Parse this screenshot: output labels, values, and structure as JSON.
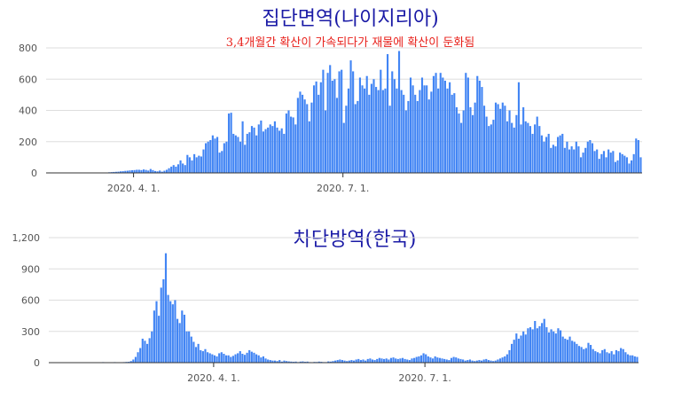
{
  "colors": {
    "bar": "#4285f4",
    "title": "#1a1aa6",
    "subtitle": "#e8201a"
  },
  "chart_data": [
    {
      "type": "bar",
      "title": "집단면역(나이지리아)",
      "subtitle": "3,4개월간 확산이 가속되다가 재물에 확산이 둔화됨",
      "ylim": [
        0,
        800
      ],
      "yticks": [
        "0",
        "200",
        "400",
        "600",
        "800"
      ],
      "ytick_values": [
        0,
        200,
        400,
        600,
        800
      ],
      "xticks": [
        {
          "label": "2020. 4. 1.",
          "index": 38
        },
        {
          "label": "2020. 7. 1.",
          "index": 129
        }
      ],
      "series": [
        {
          "values": [
            0,
            3,
            0,
            0,
            0,
            0,
            0,
            0,
            0,
            0,
            0,
            0,
            0,
            0,
            0,
            0,
            0,
            0,
            0,
            0,
            0,
            0,
            0,
            0,
            0,
            0,
            2,
            4,
            5,
            6,
            7,
            8,
            10,
            11,
            13,
            14,
            16,
            17,
            18,
            20,
            20,
            18,
            22,
            19,
            15,
            25,
            18,
            12,
            10,
            15,
            8,
            14,
            20,
            30,
            40,
            50,
            40,
            55,
            80,
            60,
            50,
            115,
            100,
            80,
            120,
            100,
            110,
            105,
            150,
            190,
            200,
            210,
            240,
            220,
            230,
            130,
            140,
            190,
            200,
            380,
            385,
            250,
            240,
            230,
            200,
            330,
            180,
            250,
            260,
            300,
            290,
            240,
            310,
            335,
            265,
            280,
            290,
            310,
            300,
            330,
            290,
            270,
            285,
            250,
            380,
            400,
            360,
            355,
            310,
            480,
            520,
            500,
            470,
            440,
            330,
            450,
            560,
            585,
            500,
            580,
            660,
            400,
            640,
            690,
            590,
            600,
            480,
            650,
            660,
            320,
            430,
            540,
            720,
            650,
            440,
            460,
            610,
            560,
            540,
            620,
            500,
            570,
            600,
            550,
            530,
            660,
            530,
            540,
            760,
            430,
            650,
            600,
            540,
            780,
            530,
            500,
            400,
            460,
            610,
            560,
            500,
            460,
            530,
            610,
            560,
            560,
            470,
            520,
            620,
            640,
            540,
            640,
            610,
            590,
            540,
            580,
            500,
            510,
            420,
            380,
            320,
            400,
            640,
            610,
            420,
            370,
            450,
            620,
            590,
            550,
            430,
            360,
            300,
            310,
            340,
            450,
            440,
            410,
            450,
            430,
            330,
            400,
            320,
            290,
            370,
            580,
            310,
            420,
            330,
            320,
            300,
            250,
            310,
            360,
            300,
            240,
            200,
            230,
            250,
            160,
            180,
            170,
            230,
            240,
            250,
            160,
            200,
            150,
            170,
            150,
            200,
            170,
            100,
            130,
            160,
            200,
            210,
            190,
            140,
            150,
            90,
            120,
            140,
            100,
            150,
            130,
            140,
            70,
            80,
            130,
            120,
            110,
            100,
            60,
            80,
            120,
            220,
            210,
            100
          ]
        }
      ]
    },
    {
      "type": "bar",
      "title": "차단방역(한국)",
      "ylim": [
        0,
        1200
      ],
      "yticks": [
        "0",
        "300",
        "600",
        "900",
        "1,200"
      ],
      "ytick_values": [
        0,
        300,
        600,
        900,
        1200
      ],
      "xticks": [
        {
          "label": "2020. 4. 1.",
          "index": 71
        },
        {
          "label": "2020. 7. 1.",
          "index": 162
        }
      ],
      "series": [
        {
          "values": [
            0,
            0,
            0,
            0,
            1,
            1,
            0,
            1,
            0,
            1,
            3,
            2,
            3,
            2,
            2,
            2,
            3,
            4,
            3,
            4,
            2,
            3,
            3,
            5,
            3,
            4,
            2,
            2,
            5,
            4,
            1,
            3,
            5,
            7,
            8,
            15,
            30,
            55,
            100,
            140,
            230,
            210,
            180,
            235,
            300,
            500,
            590,
            450,
            720,
            800,
            1050,
            650,
            590,
            560,
            600,
            420,
            380,
            500,
            460,
            300,
            300,
            250,
            200,
            150,
            180,
            120,
            110,
            130,
            100,
            90,
            80,
            70,
            60,
            90,
            100,
            85,
            70,
            70,
            55,
            65,
            80,
            90,
            110,
            85,
            75,
            95,
            120,
            105,
            95,
            80,
            70,
            50,
            60,
            40,
            30,
            25,
            20,
            20,
            15,
            25,
            10,
            20,
            15,
            12,
            10,
            8,
            10,
            5,
            10,
            12,
            8,
            10,
            5,
            4,
            7,
            6,
            10,
            8,
            5,
            5,
            12,
            10,
            15,
            20,
            25,
            30,
            25,
            20,
            15,
            20,
            25,
            20,
            30,
            35,
            25,
            30,
            20,
            35,
            40,
            30,
            25,
            35,
            45,
            40,
            35,
            40,
            30,
            45,
            50,
            40,
            35,
            40,
            45,
            35,
            30,
            25,
            40,
            45,
            55,
            60,
            70,
            90,
            80,
            60,
            50,
            40,
            60,
            50,
            45,
            40,
            35,
            30,
            25,
            45,
            55,
            50,
            40,
            35,
            30,
            20,
            25,
            30,
            20,
            15,
            20,
            25,
            20,
            30,
            35,
            25,
            20,
            15,
            20,
            30,
            40,
            50,
            60,
            80,
            120,
            180,
            220,
            280,
            230,
            260,
            300,
            270,
            330,
            340,
            320,
            400,
            330,
            350,
            380,
            420,
            340,
            290,
            320,
            300,
            280,
            330,
            310,
            250,
            230,
            220,
            250,
            210,
            200,
            180,
            160,
            150,
            130,
            140,
            190,
            170,
            130,
            110,
            100,
            90,
            120,
            130,
            100,
            90,
            110,
            80,
            120,
            110,
            140,
            130,
            100,
            80,
            70,
            70,
            60,
            55
          ]
        }
      ]
    }
  ]
}
